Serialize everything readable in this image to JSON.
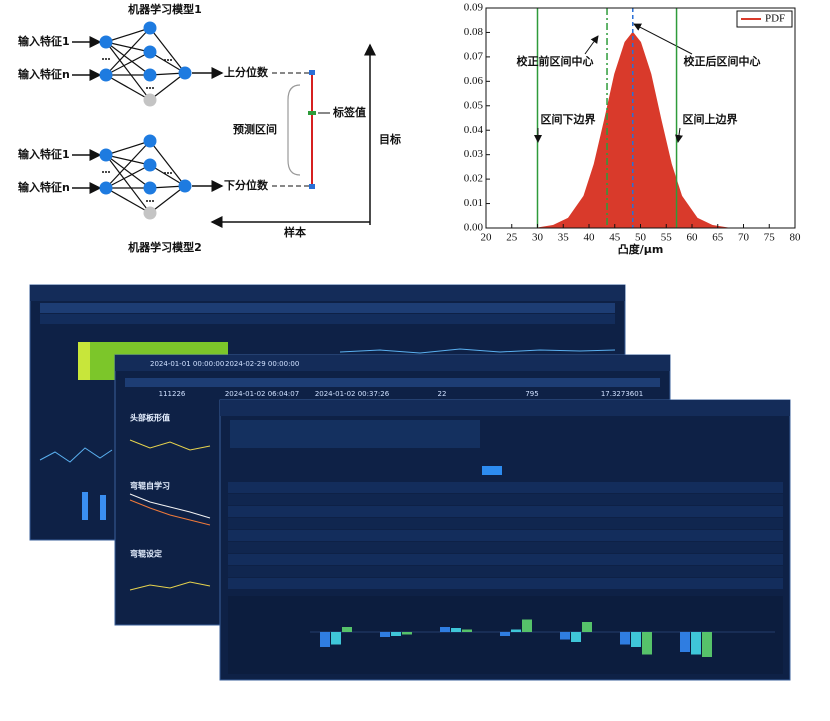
{
  "diagram": {
    "model1": {
      "title": "机器学习模型1",
      "input_first": "输入特征1",
      "input_last": "输入特征n",
      "output": "上分位数"
    },
    "model2": {
      "title": "机器学习模型2",
      "input_first": "输入特征1",
      "input_last": "输入特征n",
      "output": "下分位数"
    },
    "interval_label": "预测区间",
    "label_value": "标签值",
    "y_axis": "目标",
    "x_axis": "样本"
  },
  "chart_data": {
    "type": "area",
    "xlabel": "凸度/μm",
    "xlim": [
      20,
      80
    ],
    "xticks": [
      20,
      25,
      30,
      35,
      40,
      45,
      50,
      55,
      60,
      65,
      70,
      75,
      80
    ],
    "ylim": [
      0,
      0.09
    ],
    "yticks": [
      {
        "value": 0,
        "label": "0.00"
      },
      0.01,
      0.02,
      0.03,
      0.04,
      0.05,
      0.06,
      0.07,
      0.08,
      0.09
    ],
    "legend": "upper right",
    "series": [
      {
        "name": "PDF",
        "color": "#d93a2b",
        "x": [
          30,
          33,
          36,
          39,
          41,
          43,
          45,
          47,
          48.5,
          50,
          52,
          54,
          56,
          58,
          61,
          64,
          67
        ],
        "values": [
          0.0,
          0.001,
          0.004,
          0.013,
          0.026,
          0.044,
          0.063,
          0.076,
          0.08,
          0.076,
          0.063,
          0.044,
          0.026,
          0.013,
          0.004,
          0.001,
          0.0
        ]
      }
    ],
    "vlines": [
      {
        "x": 30,
        "label": "区间下边界",
        "color": "#2e9b3a",
        "style": "solid"
      },
      {
        "x": 43.5,
        "label": "校正前区间中心",
        "color": "#2e9b3a",
        "style": "dashdot"
      },
      {
        "x": 48.5,
        "label": "校正后区间中心",
        "color": "#2a6fd6",
        "style": "dashed"
      },
      {
        "x": 57,
        "label": "区间上边界",
        "color": "#2e9b3a",
        "style": "solid"
      }
    ]
  },
  "dashboards": {
    "panel2": {
      "start": "2024-01-01 00:00:00",
      "end": "2024-02-29 00:00:00",
      "row": [
        "111226",
        "2024-01-02 06:04:07",
        "2024-01-02 00:37:26",
        "22",
        "795",
        "17.3273601"
      ],
      "sections": [
        "头部板形值",
        "弯辊自学习",
        "弯辊设定"
      ]
    },
    "panel3": {
      "bars": {
        "ylim": [
          -60,
          40
        ],
        "series": [
          {
            "color": "#2f7de1",
            "values": [
              -30,
              -10,
              10,
              -8,
              -15,
              -25,
              -40
            ]
          },
          {
            "color": "#3fc6d8",
            "values": [
              -25,
              -8,
              8,
              5,
              -20,
              -30,
              -45
            ]
          },
          {
            "color": "#56c26a",
            "values": [
              10,
              -5,
              5,
              25,
              20,
              -45,
              -50
            ]
          }
        ]
      }
    }
  }
}
